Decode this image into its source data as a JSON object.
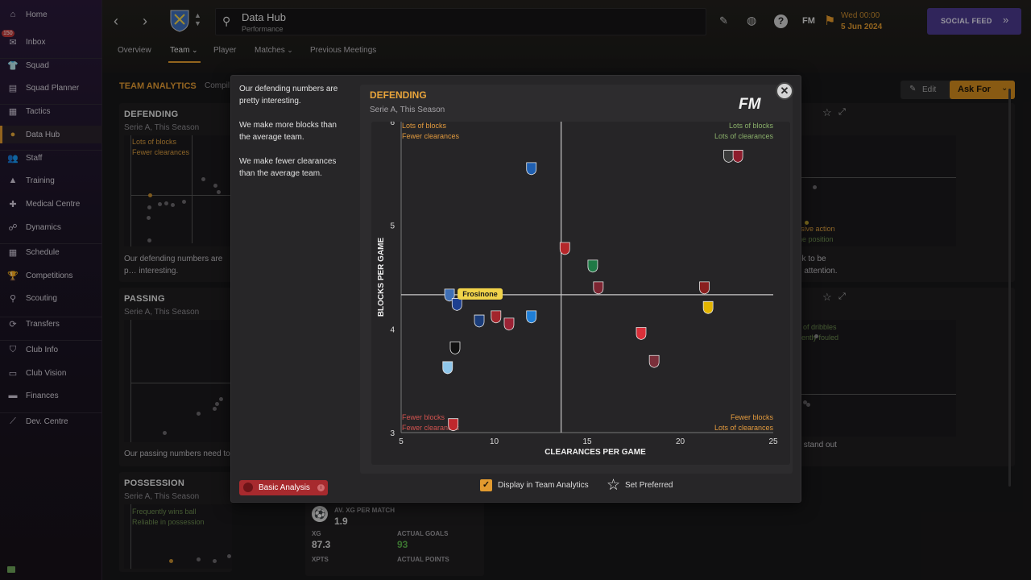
{
  "sidebar": {
    "items": [
      {
        "label": "Home",
        "icon": "home-icon"
      },
      {
        "label": "Inbox",
        "icon": "inbox-icon",
        "badge": "150"
      },
      {
        "label": "Squad",
        "icon": "shirt-icon"
      },
      {
        "label": "Squad Planner",
        "icon": "clipboard-icon"
      },
      {
        "label": "Tactics",
        "icon": "tactics-board-icon"
      },
      {
        "label": "Data Hub",
        "icon": "data-hub-icon",
        "active": true
      },
      {
        "label": "Staff",
        "icon": "staff-icon"
      },
      {
        "label": "Training",
        "icon": "training-cone-icon"
      },
      {
        "label": "Medical Centre",
        "icon": "medical-kit-icon"
      },
      {
        "label": "Dynamics",
        "icon": "dynamics-icon"
      },
      {
        "label": "Schedule",
        "icon": "calendar-icon"
      },
      {
        "label": "Competitions",
        "icon": "trophy-icon"
      },
      {
        "label": "Scouting",
        "icon": "magnifier-icon"
      },
      {
        "label": "Transfers",
        "icon": "transfer-arrows-icon"
      },
      {
        "label": "Club Info",
        "icon": "shield-icon"
      },
      {
        "label": "Club Vision",
        "icon": "briefcase-icon"
      },
      {
        "label": "Finances",
        "icon": "money-icon"
      },
      {
        "label": "Dev. Centre",
        "icon": "dev-centre-icon"
      }
    ]
  },
  "header": {
    "page_title": "Data Hub",
    "page_subtitle": "Performance",
    "date_line1": "Wed 00:00",
    "date_line2": "5 Jun 2024",
    "social_label": "SOCIAL FEED",
    "fm_badge": "FM",
    "tabs": [
      {
        "label": "Overview"
      },
      {
        "label": "Team",
        "active": true
      },
      {
        "label": "Player"
      },
      {
        "label": "Matches"
      },
      {
        "label": "Previous Meetings"
      }
    ]
  },
  "content": {
    "section_title": "TEAM ANALYTICS",
    "section_suffix": "Compil",
    "edit_label": "Edit",
    "askfor_label": "Ask For",
    "defending": {
      "title": "DEFENDING",
      "sub": "Serie A, This Season",
      "q1": "Lots of blocks",
      "q2": "Fewer clearances",
      "text": "Our defending numbers are p… interesting."
    },
    "passing": {
      "title": "PASSING",
      "sub": "Serie A, This Season",
      "text": "Our passing numbers need to"
    },
    "possession": {
      "title": "POSSESSION",
      "sub": "Serie A, This Season",
      "q1": "Frequently wins ball",
      "q2": "Reliable in possession"
    },
    "right_top": {
      "l1": "nsive action",
      "l2": "ine position",
      "t1": "ok to be",
      "t2": "d attention."
    },
    "right_mid": {
      "l1": "of dribbles",
      "l2": "ently fouled",
      "t1": "s stand out"
    },
    "xg": {
      "av_label": "AV. XG PER MATCH",
      "av_value": "1.9",
      "xg_label": "XG",
      "xg_value": "87.3",
      "goals_label": "ACTUAL GOALS",
      "goals_value": "93",
      "xpts_label": "XPTS",
      "points_label": "ACTUAL POINTS"
    }
  },
  "modal": {
    "text1": "Our defending numbers are pretty interesting.",
    "text2": "We make more blocks than the average team.",
    "text3": "We make fewer clearances than the average team.",
    "basic_analysis": "Basic Analysis",
    "display_label": "Display in Team Analytics",
    "preferred_label": "Set Preferred",
    "fm_logo": "FM"
  },
  "chart_data": {
    "type": "scatter",
    "title": "DEFENDING",
    "subtitle": "Serie A, This Season",
    "xlabel": "CLEARANCES PER GAME",
    "ylabel": "BLOCKS PER GAME",
    "xlim": [
      5,
      25
    ],
    "ylim": [
      3,
      6
    ],
    "xticks": [
      "5",
      "10",
      "15",
      "20",
      "25"
    ],
    "yticks": [
      "3",
      "4",
      "5",
      "6"
    ],
    "avg_x": 13.6,
    "avg_y": 4.33,
    "quadrants": {
      "tl": [
        "Lots of blocks",
        "Fewer clearances"
      ],
      "tr": [
        "Lots of blocks",
        "Lots of clearances"
      ],
      "bl": [
        "Fewer blocks",
        "Fewer clearances"
      ],
      "br": [
        "Fewer blocks",
        "Lots of clearances"
      ]
    },
    "highlight_label": "Frosinone",
    "points": [
      {
        "team": "Frosinone",
        "x": 7.6,
        "y": 4.33,
        "color": "#3f6fb5"
      },
      {
        "team": "Inter",
        "x": 8.0,
        "y": 4.24,
        "color": "#1d3f8f"
      },
      {
        "team": "Atalanta",
        "x": 9.2,
        "y": 4.08,
        "color": "#1b3d7a"
      },
      {
        "team": "Roma",
        "x": 10.1,
        "y": 4.12,
        "color": "#a3252c"
      },
      {
        "team": "Bologna",
        "x": 10.8,
        "y": 4.05,
        "color": "#9b2335"
      },
      {
        "team": "Napoli",
        "x": 12.0,
        "y": 4.12,
        "color": "#1f7ed6"
      },
      {
        "team": "Empoli",
        "x": 12.0,
        "y": 5.55,
        "color": "#1f5fb0"
      },
      {
        "team": "Genoa",
        "x": 13.8,
        "y": 4.78,
        "color": "#b5262a"
      },
      {
        "team": "Sassuolo",
        "x": 15.3,
        "y": 4.61,
        "color": "#1f7a46"
      },
      {
        "team": "Torino",
        "x": 15.6,
        "y": 4.4,
        "color": "#7d2532"
      },
      {
        "team": "Salernitana",
        "x": 21.3,
        "y": 4.4,
        "color": "#8a1f1f"
      },
      {
        "team": "Verona",
        "x": 21.5,
        "y": 4.21,
        "color": "#e2b400"
      },
      {
        "team": "Monza",
        "x": 17.9,
        "y": 3.96,
        "color": "#d9303a"
      },
      {
        "team": "Lecce",
        "x": 18.6,
        "y": 3.69,
        "color": "#7a2f3a"
      },
      {
        "team": "Udinese",
        "x": 22.6,
        "y": 5.67,
        "color": "#3a3a3a"
      },
      {
        "team": "Cagliari",
        "x": 23.1,
        "y": 5.67,
        "color": "#8d1c2c"
      },
      {
        "team": "Juventus",
        "x": 7.9,
        "y": 3.82,
        "color": "#111111"
      },
      {
        "team": "Lazio",
        "x": 7.5,
        "y": 3.63,
        "color": "#8fc6ea"
      },
      {
        "team": "Milan",
        "x": 7.8,
        "y": 3.08,
        "color": "#c0282d"
      }
    ]
  }
}
